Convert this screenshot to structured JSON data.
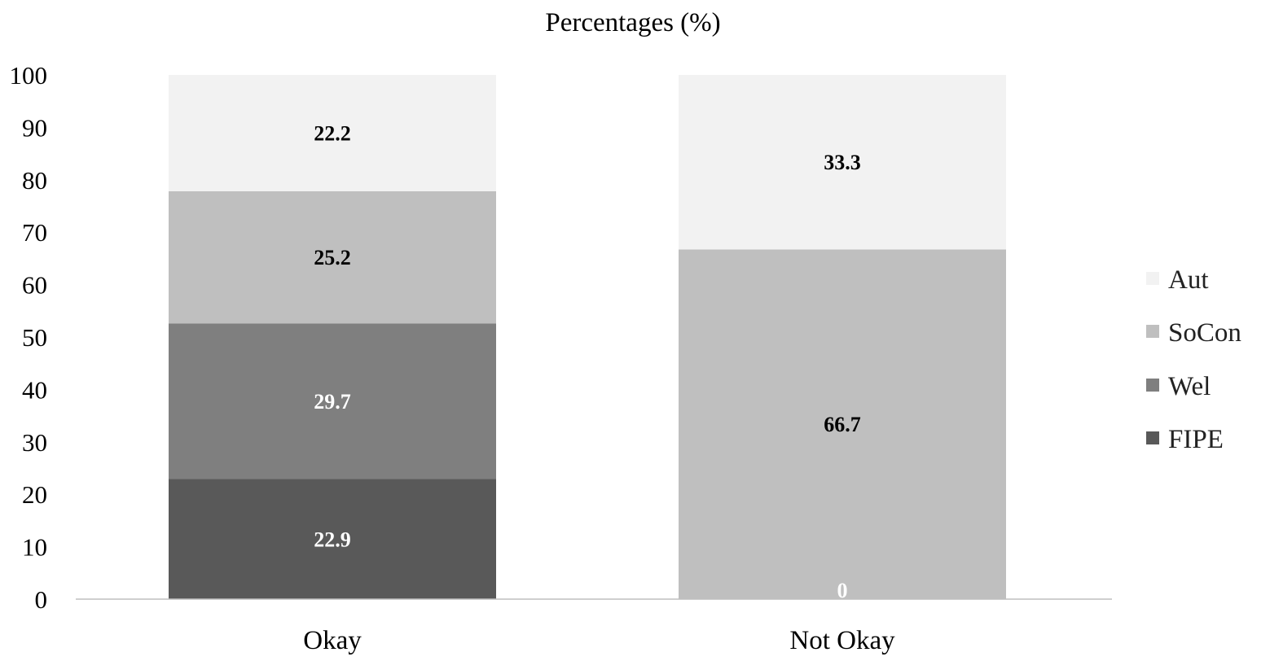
{
  "chart_data": {
    "type": "bar",
    "stacked": true,
    "title": "Percentages (%)",
    "xlabel": "",
    "ylabel": "",
    "ylim": [
      0,
      100
    ],
    "yticks": [
      0,
      10,
      20,
      30,
      40,
      50,
      60,
      70,
      80,
      90,
      100
    ],
    "grid": false,
    "legend_position": "right",
    "categories": [
      "Okay",
      "Not Okay"
    ],
    "series": [
      {
        "name": "FIPE",
        "color": "#595959",
        "label_color": "#ffffff",
        "values": [
          22.9,
          0
        ]
      },
      {
        "name": "Wel",
        "color": "#7f7f7f",
        "label_color": "#ffffff",
        "values": [
          29.7,
          0
        ]
      },
      {
        "name": "SoCon",
        "color": "#bfbfbf",
        "label_color": "#000000",
        "values": [
          25.2,
          66.7
        ]
      },
      {
        "name": "Aut",
        "color": "#f2f2f2",
        "label_color": "#000000",
        "values": [
          22.2,
          33.3
        ]
      }
    ],
    "data_labels": [
      {
        "series": "FIPE",
        "category": "Okay",
        "text": "22.9"
      },
      {
        "series": "Wel",
        "category": "Okay",
        "text": "29.7"
      },
      {
        "series": "SoCon",
        "category": "Okay",
        "text": "25.2"
      },
      {
        "series": "Aut",
        "category": "Okay",
        "text": "22.2"
      },
      {
        "series": "FIPE",
        "category": "Not Okay",
        "text": "0"
      },
      {
        "series": "SoCon",
        "category": "Not Okay",
        "text": "66.7"
      },
      {
        "series": "Aut",
        "category": "Not Okay",
        "text": "33.3"
      }
    ],
    "legend_order": [
      "Aut",
      "SoCon",
      "Wel",
      "FIPE"
    ]
  }
}
